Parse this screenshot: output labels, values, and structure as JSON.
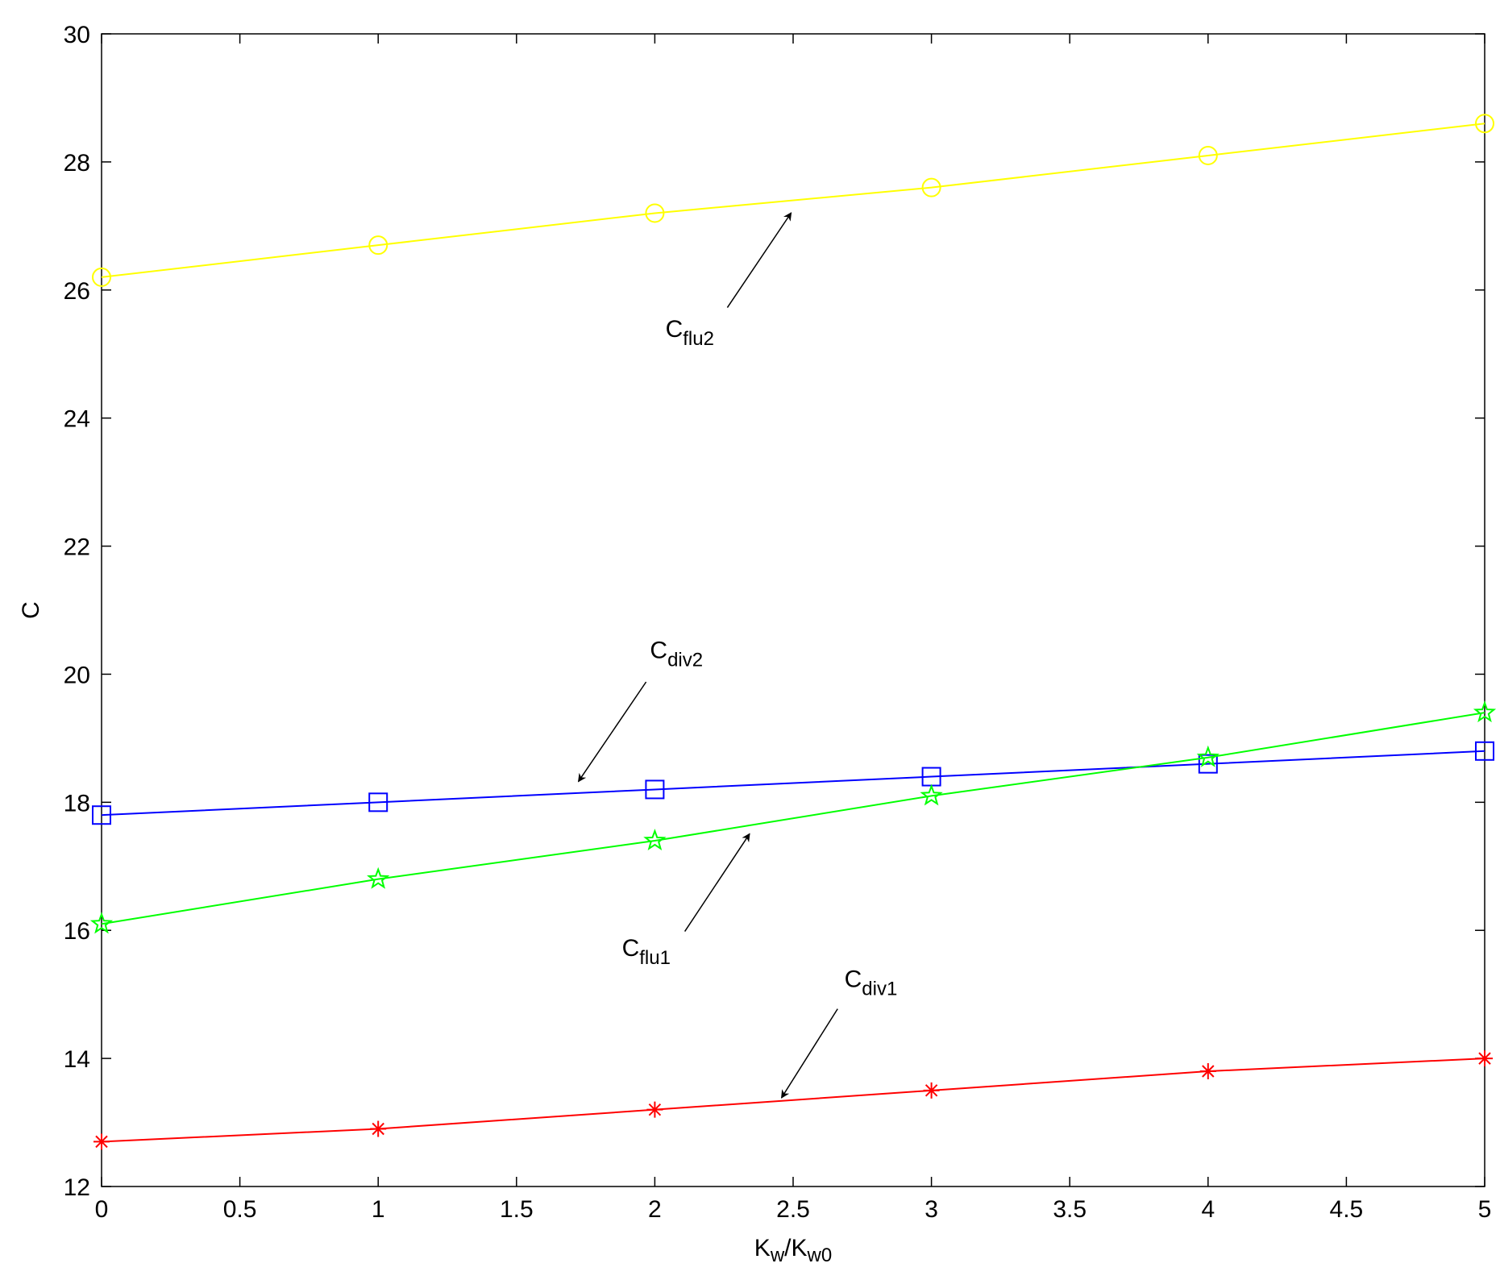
{
  "chart_data": {
    "type": "line",
    "xlabel": [
      {
        "text": "K"
      },
      {
        "text": "w",
        "sub": true
      },
      {
        "text": "/K"
      },
      {
        "text": "w0",
        "sub": true
      }
    ],
    "ylabel": "C",
    "x": [
      0,
      1,
      2,
      3,
      4,
      5
    ],
    "series": [
      {
        "color": "#ffff00",
        "marker": "circle",
        "values": [
          26.2,
          26.7,
          27.2,
          27.6,
          28.1,
          28.6
        ]
      },
      {
        "color": "#0000ff",
        "marker": "square",
        "values": [
          17.8,
          18.0,
          18.2,
          18.4,
          18.6,
          18.8
        ]
      },
      {
        "color": "#00ff00",
        "marker": "star",
        "values": [
          16.1,
          16.8,
          17.4,
          18.1,
          18.7,
          19.4
        ]
      },
      {
        "color": "#ff0000",
        "marker": "asterisk",
        "values": [
          12.7,
          12.9,
          13.2,
          13.5,
          13.8,
          14.0
        ]
      }
    ],
    "annotations": [
      {
        "text": "C",
        "sub": "flu2"
      },
      {
        "text": "C",
        "sub": "div2"
      },
      {
        "text": "C",
        "sub": "flu1"
      },
      {
        "text": "C",
        "sub": "div1"
      }
    ],
    "xlim": [
      0,
      5
    ],
    "xticks": [
      0,
      0.5,
      1,
      1.5,
      2,
      2.5,
      3,
      3.5,
      4,
      4.5,
      5
    ],
    "ylim": [
      12,
      30
    ],
    "yticks": [
      12,
      14,
      16,
      18,
      20,
      22,
      24,
      26,
      28,
      30
    ],
    "grid": false
  }
}
